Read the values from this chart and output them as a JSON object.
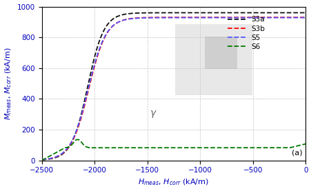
{
  "xlabel": "H_{meas}, H_{corr} (kA/m)",
  "ylabel": "M_{meas}, M_{corr} (kA/m)",
  "xlim": [
    -2500,
    0
  ],
  "ylim": [
    0,
    1000
  ],
  "xticks": [
    -2500,
    -2000,
    -1500,
    -1000,
    -500,
    0
  ],
  "yticks": [
    0,
    200,
    400,
    600,
    800,
    1000
  ],
  "annotation": "(a)",
  "gamma_label": "γ",
  "legend_labels": [
    "S3a",
    "S3b",
    "S5",
    "S6"
  ],
  "legend_colors": [
    "#111111",
    "#ff0000",
    "#5555ff",
    "#007700"
  ],
  "background_color": "#ffffff",
  "grid_color": "#bbbbbb",
  "label_fontsize": 8,
  "tick_fontsize": 7.5,
  "label_color": "#0000bb"
}
